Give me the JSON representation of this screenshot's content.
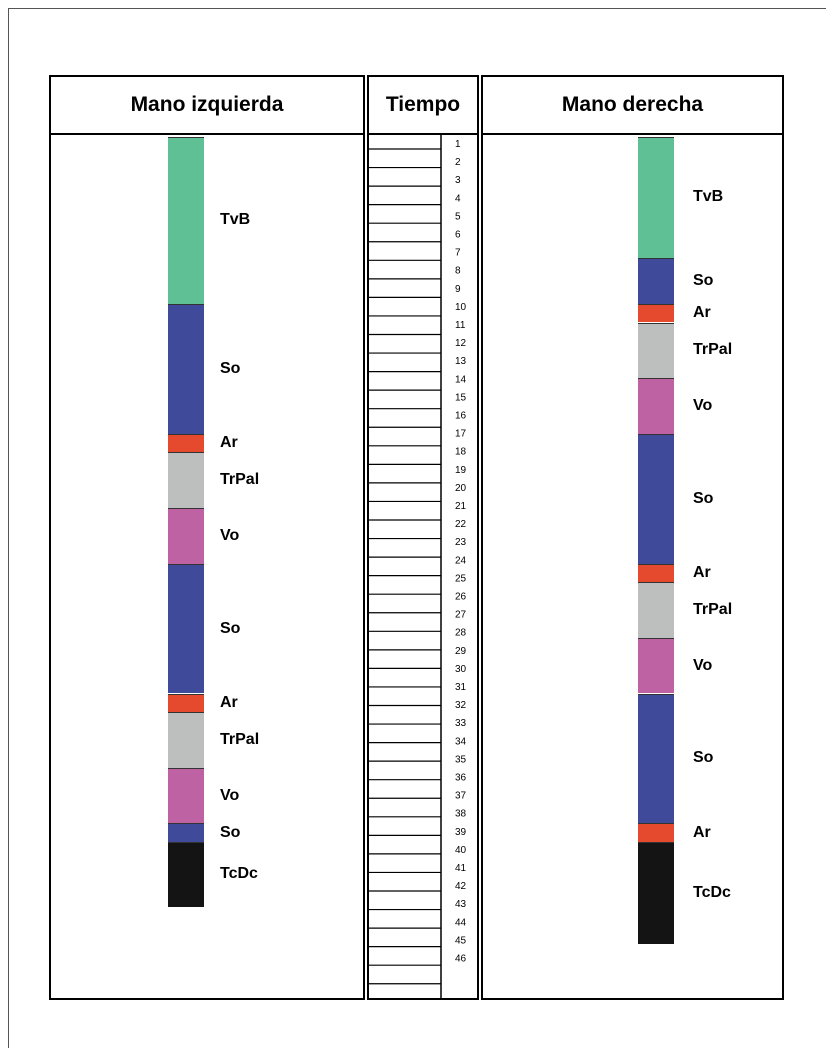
{
  "headers": {
    "left": "Mano izquierda",
    "time": "Tiempo",
    "right": "Mano derecha"
  },
  "colors": {
    "TvB": "#5fc095",
    "So": "#3f4a9b",
    "Ar": "#e64a2e",
    "TrPal": "#bdbfbf",
    "Vo": "#bf62a4",
    "TcDc": "#141414"
  },
  "time_ticks": [
    "1",
    "2",
    "3",
    "4",
    "5",
    "6",
    "7",
    "8",
    "9",
    "10",
    "11",
    "12",
    "13",
    "14",
    "15",
    "16",
    "17",
    "18",
    "19",
    "20",
    "21",
    "22",
    "23",
    "24",
    "25",
    "26",
    "27",
    "28",
    "29",
    "30",
    "31",
    "32",
    "33",
    "34",
    "35",
    "36",
    "37",
    "38",
    "39",
    "40",
    "41",
    "42",
    "43",
    "44",
    "45",
    "46"
  ],
  "left_hand": [
    {
      "code": "TvB",
      "start": 0,
      "end": 9
    },
    {
      "code": "So",
      "start": 9,
      "end": 16
    },
    {
      "code": "Ar",
      "start": 16,
      "end": 17
    },
    {
      "code": "TrPal",
      "start": 17,
      "end": 20
    },
    {
      "code": "Vo",
      "start": 20,
      "end": 23
    },
    {
      "code": "So",
      "start": 23,
      "end": 30
    },
    {
      "code": "Ar",
      "start": 30,
      "end": 31
    },
    {
      "code": "TrPal",
      "start": 31,
      "end": 34
    },
    {
      "code": "Vo",
      "start": 34,
      "end": 37
    },
    {
      "code": "So",
      "start": 37,
      "end": 38
    },
    {
      "code": "TcDc",
      "start": 38,
      "end": 41.5
    }
  ],
  "right_hand": [
    {
      "code": "TvB",
      "start": 0,
      "end": 6.5
    },
    {
      "code": "So",
      "start": 6.5,
      "end": 9
    },
    {
      "code": "Ar",
      "start": 9,
      "end": 10
    },
    {
      "code": "TrPal",
      "start": 10,
      "end": 13
    },
    {
      "code": "Vo",
      "start": 13,
      "end": 16
    },
    {
      "code": "So",
      "start": 16,
      "end": 23
    },
    {
      "code": "Ar",
      "start": 23,
      "end": 24
    },
    {
      "code": "TrPal",
      "start": 24,
      "end": 27
    },
    {
      "code": "Vo",
      "start": 27,
      "end": 30
    },
    {
      "code": "So",
      "start": 30,
      "end": 37
    },
    {
      "code": "Ar",
      "start": 37,
      "end": 38
    },
    {
      "code": "TcDc",
      "start": 38,
      "end": 43.5
    }
  ]
}
